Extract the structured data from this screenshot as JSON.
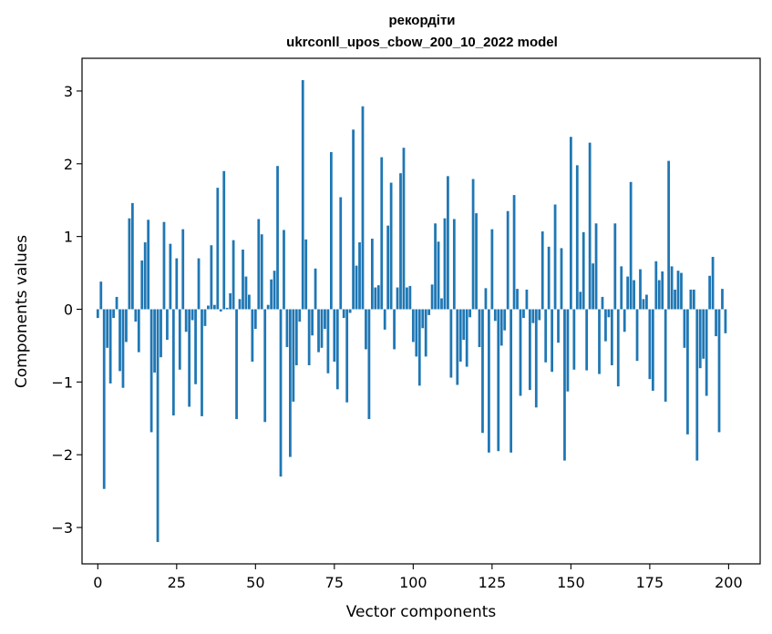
{
  "chart_data": {
    "type": "bar",
    "title": "рекордіти",
    "subtitle": "ukrconll_upos_cbow_200_10_2022 model",
    "xlabel": "Vector components",
    "ylabel": "Components values",
    "xlim": [
      -5,
      210
    ],
    "ylim": [
      -3.5,
      3.45
    ],
    "xticks": [
      0,
      25,
      50,
      75,
      100,
      125,
      150,
      175,
      200
    ],
    "xtick_labels": [
      "0",
      "25",
      "50",
      "75",
      "100",
      "125",
      "150",
      "175",
      "200"
    ],
    "yticks": [
      -3,
      -2,
      -1,
      0,
      1,
      2,
      3
    ],
    "ytick_labels": [
      "−3",
      "−2",
      "−1",
      "0",
      "1",
      "2",
      "3"
    ],
    "bar_color": "#1f77b4",
    "grid": false,
    "legend": "none",
    "values": [
      -0.12,
      0.38,
      -2.47,
      -0.53,
      -1.02,
      -0.12,
      0.17,
      -0.85,
      -1.08,
      -0.45,
      1.25,
      1.46,
      -0.17,
      -0.59,
      0.67,
      0.92,
      1.23,
      -1.69,
      -0.87,
      -3.2,
      -0.66,
      1.2,
      -0.42,
      0.9,
      -1.46,
      0.7,
      -0.83,
      1.1,
      -0.31,
      -1.34,
      -0.15,
      -1.03,
      0.7,
      -1.47,
      -0.23,
      0.05,
      0.88,
      0.06,
      1.67,
      -0.03,
      1.9,
      0.02,
      0.22,
      0.95,
      -1.51,
      0.14,
      0.82,
      0.45,
      0.2,
      -0.72,
      -0.27,
      1.24,
      1.03,
      -1.55,
      0.06,
      0.41,
      0.53,
      1.97,
      -2.3,
      1.09,
      -0.52,
      -2.03,
      -1.27,
      -0.77,
      -0.17,
      3.15,
      0.96,
      -0.77,
      -0.36,
      0.56,
      -0.59,
      -0.53,
      -0.27,
      -0.88,
      2.16,
      -0.72,
      -1.1,
      1.54,
      -0.12,
      -1.28,
      -0.05,
      2.47,
      0.6,
      0.92,
      2.79,
      -0.55,
      -1.51,
      0.97,
      0.3,
      0.33,
      2.09,
      -0.28,
      1.15,
      1.74,
      -0.55,
      0.3,
      1.87,
      2.22,
      0.3,
      0.32,
      -0.45,
      -0.65,
      -1.05,
      -0.26,
      -0.65,
      -0.08,
      0.34,
      1.18,
      0.93,
      0.15,
      1.25,
      1.83,
      -0.94,
      1.24,
      -1.04,
      -0.72,
      -0.42,
      -0.79,
      -0.11,
      1.79,
      1.32,
      -0.52,
      -1.7,
      0.29,
      -1.97,
      1.1,
      -0.16,
      -1.95,
      -0.5,
      -0.29,
      1.35,
      -1.97,
      1.57,
      0.28,
      -1.19,
      -0.12,
      0.27,
      -1.11,
      -0.19,
      -1.35,
      -0.15,
      1.07,
      -0.73,
      0.86,
      -0.86,
      1.44,
      -0.46,
      0.84,
      -2.08,
      -1.13,
      2.37,
      -0.83,
      1.98,
      0.24,
      1.06,
      -0.84,
      2.29,
      0.63,
      1.18,
      -0.89,
      0.17,
      -0.44,
      -0.11,
      -0.77,
      1.18,
      -1.06,
      0.59,
      -0.31,
      0.45,
      1.75,
      0.4,
      -0.71,
      0.55,
      0.14,
      0.2,
      -0.96,
      -1.12,
      0.66,
      0.4,
      0.52,
      -1.27,
      2.04,
      0.59,
      0.27,
      0.53,
      0.5,
      -0.53,
      -1.72,
      0.27,
      0.27,
      -2.08,
      -0.81,
      -0.68,
      -1.19,
      0.46,
      0.72,
      -0.37,
      -1.69,
      0.28,
      -0.33
    ]
  }
}
